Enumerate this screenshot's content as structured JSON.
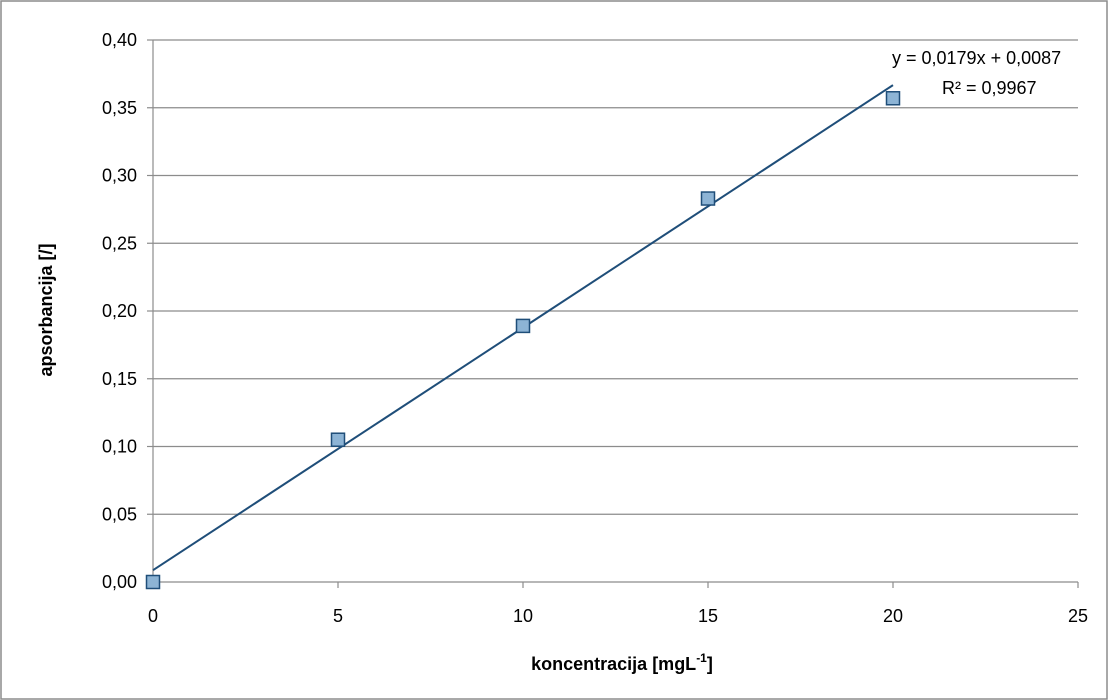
{
  "chart_data": {
    "type": "scatter",
    "x": [
      0,
      5,
      10,
      15,
      20
    ],
    "y": [
      0.0,
      0.105,
      0.189,
      0.283,
      0.357
    ],
    "xlabel": "koncentracija  [mgL",
    "xlabel_superscript": "-1",
    "xlabel_suffix": "]",
    "ylabel": "apsorbancija  [/]",
    "xlim": [
      0,
      25
    ],
    "ylim": [
      0,
      0.4
    ],
    "x_ticks": [
      0,
      5,
      10,
      15,
      20,
      25
    ],
    "x_tick_labels": [
      "0",
      "5",
      "10",
      "15",
      "20",
      "25"
    ],
    "y_ticks": [
      0,
      0.05,
      0.1,
      0.15,
      0.2,
      0.25,
      0.3,
      0.35,
      0.4
    ],
    "y_tick_labels": [
      "0,00",
      "0,05",
      "0,10",
      "0,15",
      "0,20",
      "0,25",
      "0,30",
      "0,35",
      "0,40"
    ],
    "grid": "horizontal",
    "trendline": {
      "type": "linear",
      "slope": 0.0179,
      "intercept": 0.0087,
      "x_range": [
        0,
        20
      ],
      "equation_label": "y = 0,0179x + 0,0087",
      "r2_label": "R² = 0,9967"
    },
    "colors": {
      "marker_fill": "#8db4d5",
      "marker_stroke": "#1f4e79",
      "trendline": "#1f4e79",
      "grid": "#8c8c8c",
      "axis": "#8c8c8c",
      "border": "#8c8c8c"
    }
  }
}
